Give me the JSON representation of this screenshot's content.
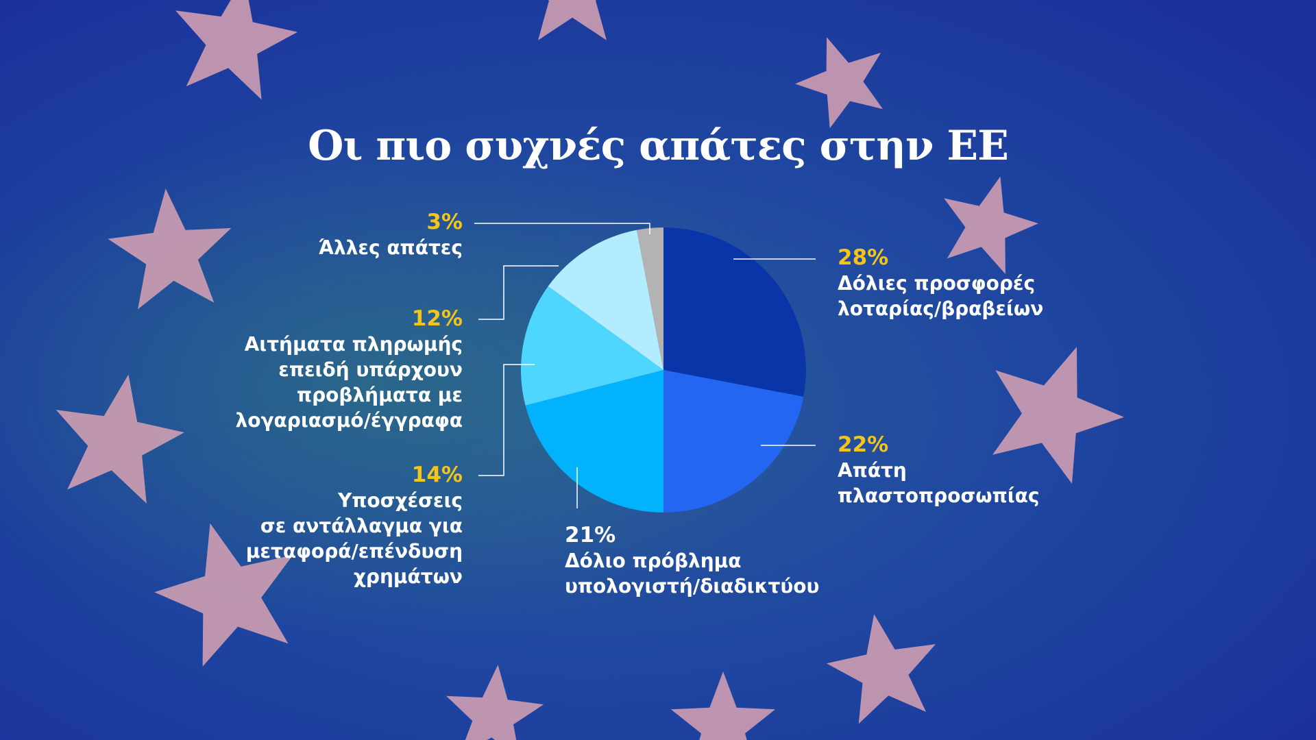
{
  "colors": {
    "background": "#1d3fa0",
    "star": "#d9a3b3",
    "percent_highlight": "#f5c418",
    "leader_line": "#ffffff"
  },
  "chart_data": {
    "type": "pie",
    "title": "Οι πιο συχνές απάτες στην ΕΕ",
    "start_angle_deg": 0,
    "direction": "clockwise",
    "slices": [
      {
        "label": "Δόλιες προσφορές λοταρίας/βραβείων",
        "value": 28,
        "display": "28%",
        "color": "#0a35a8"
      },
      {
        "label": "Απάτη πλαστοπροσωπίας",
        "value": 22,
        "display": "22%",
        "color": "#2266f2"
      },
      {
        "label": "Δόλιο πρόβλημα υπολογιστή/διαδικτύου",
        "value": 21,
        "display": "21%",
        "color": "#03b2fd"
      },
      {
        "label": "Υποσχέσεις σε αντάλλαγμα για μεταφορά/επένδυση χρημάτων",
        "value": 14,
        "display": "14%",
        "color": "#4fd6fe"
      },
      {
        "label": "Αιτήματα πληρωμής επειδή υπάρχουν προβλήματα με λογαριασμό/έγγραφα",
        "value": 12,
        "display": "12%",
        "color": "#b2ecfe"
      },
      {
        "label": "Άλλες απάτες",
        "value": 3,
        "display": "3%",
        "color": "#b3b3b3"
      }
    ]
  },
  "labels": {
    "lottery": {
      "pct": "28%",
      "text": "Δόλιες προσφορές\nλοταρίας/βραβείων"
    },
    "impersonation": {
      "pct": "22%",
      "text": "Απάτη\nπλαστοπροσωπίας"
    },
    "tech": {
      "pct": "21%",
      "text": "Δόλιο πρόβλημα\nυπολογιστή/διαδικτύου"
    },
    "investment": {
      "pct": "14%",
      "text": "Υποσχέσεις\nσε αντάλλαγμα για\nμεταφορά/επένδυση\nχρημάτων"
    },
    "payment": {
      "pct": "12%",
      "text": "Αιτήματα πληρωμής\nεπειδή υπάρχουν\nπροβλήματα με\nλογαριασμό/έγγραφα"
    },
    "other": {
      "pct": "3%",
      "text": "Άλλες απάτες"
    }
  }
}
